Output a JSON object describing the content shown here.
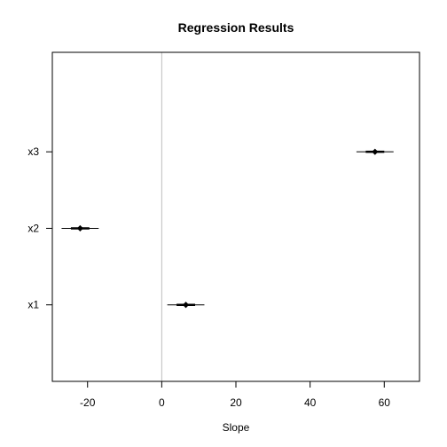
{
  "chart_data": {
    "type": "scatter",
    "title": "Regression Results",
    "xlabel": "Slope",
    "ylabel": "",
    "xlim": [
      -29.5,
      69.5
    ],
    "x_ticks": [
      -20,
      0,
      20,
      40,
      60
    ],
    "x_tick_labels": [
      "-20",
      "0",
      "20",
      "40",
      "60"
    ],
    "reference_line_x": 0,
    "categories": [
      "x1",
      "x2",
      "x3"
    ],
    "category_positions": [
      1,
      2,
      3
    ],
    "ylim": [
      0.0,
      4.3
    ],
    "estimates": [
      6.5,
      -22.0,
      57.5
    ],
    "intervals": [
      [
        1.5,
        11.5
      ],
      [
        -27.0,
        -17.0
      ],
      [
        52.5,
        62.5
      ]
    ],
    "inner_intervals": [
      [
        4.0,
        9.0
      ],
      [
        -24.5,
        -19.5
      ],
      [
        55.0,
        60.0
      ]
    ],
    "grid": false,
    "legend": "none"
  },
  "colors": {
    "reference_line": "#bebebe",
    "marks": "#000000",
    "frame": "#000000"
  }
}
